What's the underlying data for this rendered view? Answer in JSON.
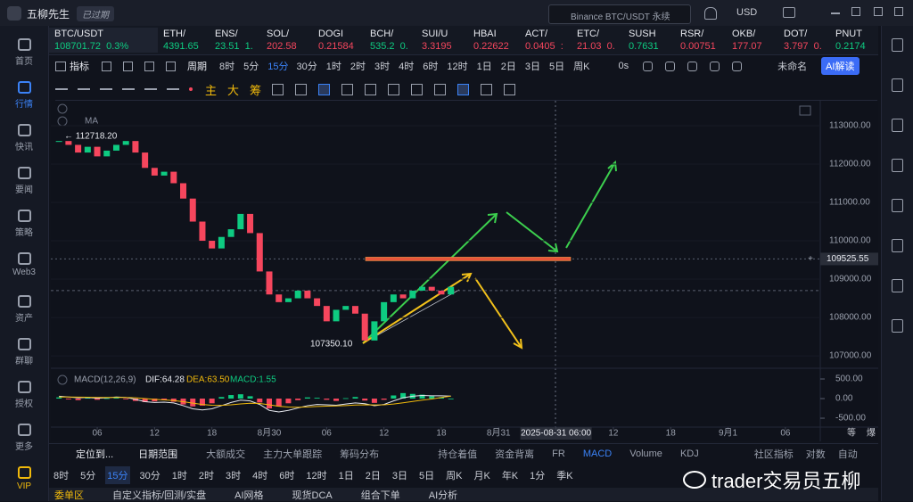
{
  "titlebar": {
    "app": "五柳先生",
    "badge": "已过期",
    "search": "Binance BTC/USDT 永续",
    "currency": "USD"
  },
  "sidebar": [
    "首页",
    "行情",
    "快讯",
    "要闻",
    "策略",
    "Web3",
    "资产",
    "群聊",
    "授权",
    "更多",
    "VIP"
  ],
  "tickers": [
    {
      "symbol": "BTC/USDT",
      "quote": "108701.72  0.3%",
      "color": "#0ecb81"
    },
    {
      "symbol": "ETH/",
      "quote": "4391.65",
      "color": "#0ecb81"
    },
    {
      "symbol": "ENS/",
      "quote": "23.51  1.",
      "color": "#0ecb81"
    },
    {
      "symbol": "SOL/",
      "quote": "202.58",
      "color": "#f6465d"
    },
    {
      "symbol": "DOGI",
      "quote": "0.21584",
      "color": "#f6465d"
    },
    {
      "symbol": "BCH/",
      "quote": "535.2  0.",
      "color": "#0ecb81"
    },
    {
      "symbol": "SUI/U",
      "quote": "3.3195",
      "color": "#f6465d"
    },
    {
      "symbol": "HBAI",
      "quote": "0.22622",
      "color": "#f6465d"
    },
    {
      "symbol": "ACT/",
      "quote": "0.0405  :",
      "color": "#f6465d"
    },
    {
      "symbol": "ETC/",
      "quote": "21.03  0.",
      "color": "#f6465d"
    },
    {
      "symbol": "SUSH",
      "quote": "0.7631",
      "color": "#0ecb81"
    },
    {
      "symbol": "RSR/",
      "quote": "0.00751",
      "color": "#f6465d"
    },
    {
      "symbol": "OKB/",
      "quote": "177.07",
      "color": "#f6465d"
    },
    {
      "symbol": "DOT/",
      "quote": "3.797  0.",
      "color": "#f6465d"
    },
    {
      "symbol": "PNUT",
      "quote": "0.2174",
      "color": "#0ecb81"
    }
  ],
  "toolbar": {
    "indicator": "指标",
    "period": "周期",
    "intervals": [
      "8时",
      "5分",
      "15分",
      "30分",
      "1时",
      "2时",
      "3时",
      "4时",
      "6时",
      "12时",
      "1日",
      "2日",
      "3日",
      "5日",
      "周K"
    ],
    "countdown": "0s",
    "layout": "未命名",
    "ai": "AI解读"
  },
  "drawbar": [
    "主",
    "大",
    "筹"
  ],
  "chart_data": {
    "type": "candlestick",
    "indicator_label": "MA",
    "ylim": [
      106630,
      113650
    ],
    "yticks": [
      {
        "value": 107000,
        "label": "107000.00"
      },
      {
        "value": 108000,
        "label": "108000.00"
      },
      {
        "value": 109000,
        "label": "109000.00"
      },
      {
        "value": 110000,
        "label": "110000.00"
      },
      {
        "value": 111000,
        "label": "111000.00"
      },
      {
        "value": 112000,
        "label": "112000.00"
      },
      {
        "value": 113000,
        "label": "113000.00"
      }
    ],
    "xticks": [
      {
        "value": -18,
        "label": "06"
      },
      {
        "value": -12,
        "label": "12"
      },
      {
        "value": -6,
        "label": "18"
      },
      {
        "value": 0,
        "label": "8月30"
      },
      {
        "value": 6,
        "label": "06"
      },
      {
        "value": 12,
        "label": "12"
      },
      {
        "value": 18,
        "label": "18"
      },
      {
        "value": 24,
        "label": "8月31"
      },
      {
        "value": 30,
        "label": "2025-08-31 06:00"
      },
      {
        "value": 36,
        "label": "12"
      },
      {
        "value": 42,
        "label": "18"
      },
      {
        "value": 48,
        "label": "9月1"
      },
      {
        "value": 54,
        "label": "06"
      }
    ],
    "axis_corner": [
      "等",
      "爆"
    ],
    "closes": [
      112600,
      112500,
      112300,
      112450,
      112200,
      112350,
      112500,
      112600,
      112300,
      111900,
      111700,
      111800,
      111500,
      111100,
      110500,
      110000,
      109800,
      110100,
      110300,
      110700,
      110200,
      109200,
      108600,
      108400,
      108500,
      108700,
      108500,
      108300,
      107900,
      108200,
      108300,
      108100,
      107400,
      107900,
      108400,
      108600,
      108500,
      108700,
      108800,
      108700,
      108600,
      108800
    ],
    "high_label": {
      "value": 112718.2,
      "label": "← 112718.20"
    },
    "low_label": {
      "value": 107350.1,
      "label": "107350.10"
    },
    "last_price": 108701.72,
    "crosshair": {
      "value": 109525.55,
      "label": "109525.55"
    },
    "up_color": "#0ecb81",
    "down_color": "#f6465d",
    "macd": {
      "label": "MACD(12,26,9)",
      "dif_label": "DIF:64.28",
      "dea_label": "DEA:63.50",
      "macd_label": "MACD:1.55",
      "ylim": [
        -636,
        614
      ],
      "yticks": [
        {
          "value": 500,
          "label": "500.00"
        },
        {
          "value": 0,
          "label": "0.00"
        },
        {
          "value": -500,
          "label": "-500.00"
        }
      ],
      "histogram": [
        30,
        -20,
        -40,
        20,
        -30,
        10,
        40,
        -10,
        -60,
        -90,
        -70,
        -40,
        -80,
        -150,
        -200,
        -180,
        -120,
        40,
        90,
        110,
        60,
        -100,
        -250,
        -200,
        -120,
        -40,
        30,
        20,
        -30,
        -60,
        10,
        40,
        -50,
        -110,
        -30,
        80,
        140,
        120,
        100,
        60,
        30,
        1.55
      ],
      "dif": [
        60,
        40,
        20,
        30,
        10,
        20,
        40,
        30,
        -20,
        -80,
        -100,
        -90,
        -110,
        -180,
        -260,
        -290,
        -260,
        -180,
        -100,
        -40,
        -60,
        -150,
        -300,
        -340,
        -300,
        -240,
        -180,
        -150,
        -160,
        -170,
        -140,
        -110,
        -130,
        -180,
        -150,
        -60,
        20,
        60,
        80,
        70,
        70,
        64.28
      ],
      "dea": [
        40,
        40,
        36,
        35,
        30,
        28,
        30,
        30,
        20,
        0,
        -20,
        -35,
        -50,
        -80,
        -115,
        -150,
        -170,
        -172,
        -158,
        -135,
        -120,
        -125,
        -160,
        -195,
        -215,
        -220,
        -212,
        -200,
        -192,
        -187,
        -178,
        -165,
        -158,
        -162,
        -160,
        -140,
        -108,
        -74,
        -40,
        -10,
        30,
        63.5
      ]
    }
  },
  "bottom_tabs": {
    "locate": "定位到...",
    "date_range": "日期范围",
    "tabs": [
      "大额成交",
      "主力大单跟踪",
      "筹码分布",
      "持仓着值",
      "资金背离",
      "FR",
      "MACD",
      "Volume",
      "KDJ"
    ],
    "community": "社区指标",
    "log": "对数",
    "auto": "自动"
  },
  "periods": [
    "8时",
    "5分",
    "15分",
    "30分",
    "1时",
    "2时",
    "3时",
    "4时",
    "6时",
    "12时",
    "1日",
    "2日",
    "3日",
    "5日",
    "周K",
    "月K",
    "年K",
    "1分",
    "季K"
  ],
  "footer_tabs": [
    "委单区",
    "自定义指标/回测/实盘",
    "AI网格",
    "现货DCA",
    "组合下单",
    "AI分析"
  ],
  "watermark": "trader交易员五柳"
}
